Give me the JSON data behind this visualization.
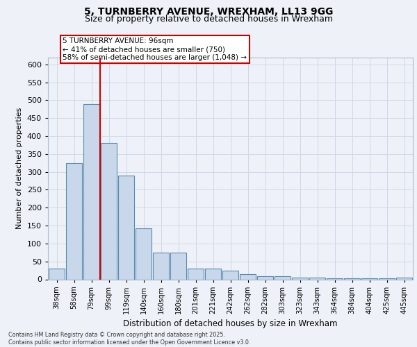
{
  "title_line1": "5, TURNBERRY AVENUE, WREXHAM, LL13 9GG",
  "title_line2": "Size of property relative to detached houses in Wrexham",
  "xlabel": "Distribution of detached houses by size in Wrexham",
  "ylabel": "Number of detached properties",
  "categories": [
    "38sqm",
    "58sqm",
    "79sqm",
    "99sqm",
    "119sqm",
    "140sqm",
    "160sqm",
    "180sqm",
    "201sqm",
    "221sqm",
    "242sqm",
    "262sqm",
    "282sqm",
    "303sqm",
    "323sqm",
    "343sqm",
    "364sqm",
    "384sqm",
    "404sqm",
    "425sqm",
    "445sqm"
  ],
  "values": [
    30,
    325,
    490,
    380,
    290,
    143,
    75,
    75,
    30,
    30,
    25,
    15,
    8,
    8,
    5,
    5,
    3,
    2,
    2,
    2,
    4
  ],
  "bar_color": "#c8d8ea",
  "bar_edge_color": "#5a8ab0",
  "grid_color": "#cdd8e8",
  "vline_color": "#cc0000",
  "annotation_text": "5 TURNBERRY AVENUE: 96sqm\n← 41% of detached houses are smaller (750)\n58% of semi-detached houses are larger (1,048) →",
  "annotation_box_color": "#ffffff",
  "annotation_box_edge": "#cc0000",
  "footer": "Contains HM Land Registry data © Crown copyright and database right 2025.\nContains public sector information licensed under the Open Government Licence v3.0.",
  "ylim": [
    0,
    620
  ],
  "yticks": [
    0,
    50,
    100,
    150,
    200,
    250,
    300,
    350,
    400,
    450,
    500,
    550,
    600
  ],
  "background_color": "#eef2f8",
  "plot_bg_color": "#eef2f8",
  "title_fontsize": 10,
  "subtitle_fontsize": 9
}
